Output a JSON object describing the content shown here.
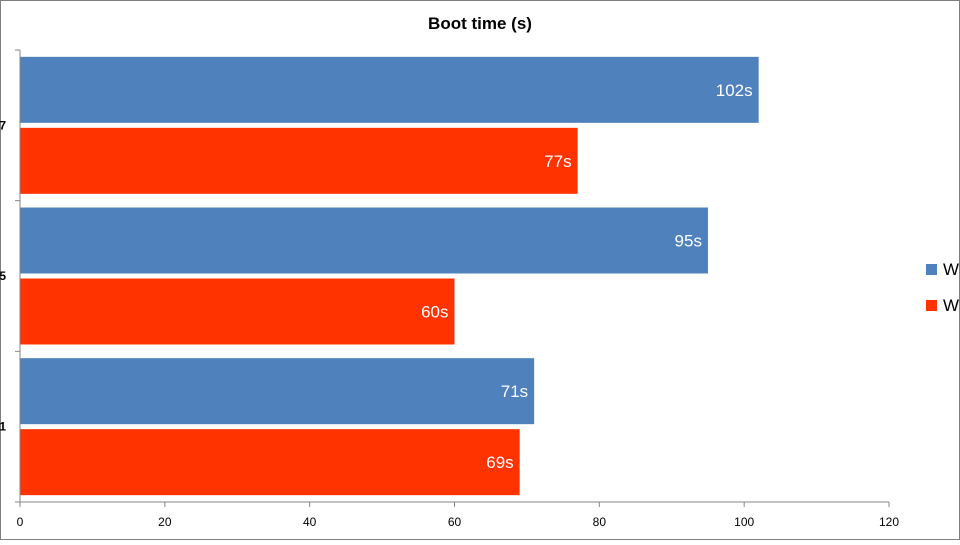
{
  "chart_data": {
    "type": "bar",
    "orientation": "horizontal",
    "title": "Boot time (s)",
    "xlabel": "",
    "ylabel": "",
    "xlim": [
      0,
      120
    ],
    "xticks": [
      0,
      20,
      40,
      60,
      80,
      100,
      120
    ],
    "categories_visible_labels": [
      "7",
      "5",
      "1"
    ],
    "categories": [
      "7",
      "5",
      "1"
    ],
    "series": [
      {
        "name": "W",
        "color": "#4f81bd",
        "values": [
          102,
          95,
          71
        ],
        "labels": [
          "102s",
          "95s",
          "71s"
        ]
      },
      {
        "name": "W",
        "color": "#ff3300",
        "values": [
          77,
          60,
          69
        ],
        "labels": [
          "77s",
          "60s",
          "69s"
        ]
      }
    ],
    "grid": false,
    "legend": "right",
    "bar_order": "series-1-top"
  }
}
